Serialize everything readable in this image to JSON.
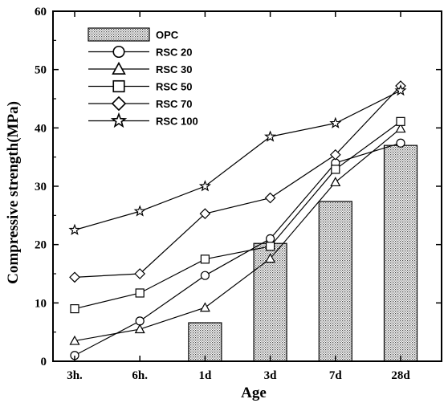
{
  "chart_data": {
    "type": "bar",
    "xlabel": "Age",
    "ylabel": "Compressive strength(MPa)",
    "categories": [
      "3h.",
      "6h.",
      "1d",
      "3d",
      "7d",
      "28d"
    ],
    "ylim": [
      0,
      60
    ],
    "yticks": [
      "0",
      "10",
      "20",
      "30",
      "40",
      "50",
      "60"
    ],
    "grid": false,
    "legend_position": "top-left",
    "series": [
      {
        "name": "OPC",
        "kind": "bar",
        "values": [
          null,
          null,
          6.6,
          20.2,
          27.4,
          37.0
        ]
      },
      {
        "name": "RSC 20",
        "kind": "line",
        "marker": "circle",
        "values": [
          1.0,
          6.9,
          14.7,
          21.0,
          34.0,
          37.4
        ]
      },
      {
        "name": "RSC 30",
        "kind": "line",
        "marker": "triangle",
        "values": [
          3.5,
          5.5,
          9.2,
          17.6,
          30.7,
          39.9
        ]
      },
      {
        "name": "RSC 50",
        "kind": "line",
        "marker": "square",
        "values": [
          9.0,
          11.7,
          17.5,
          19.7,
          32.9,
          41.1
        ]
      },
      {
        "name": "RSC 70",
        "kind": "line",
        "marker": "diamond",
        "values": [
          14.4,
          15.0,
          25.3,
          28.0,
          35.4,
          47.2
        ]
      },
      {
        "name": "RSC 100",
        "kind": "line",
        "marker": "star",
        "values": [
          22.5,
          25.7,
          30.0,
          38.5,
          40.8,
          46.4
        ]
      }
    ]
  }
}
